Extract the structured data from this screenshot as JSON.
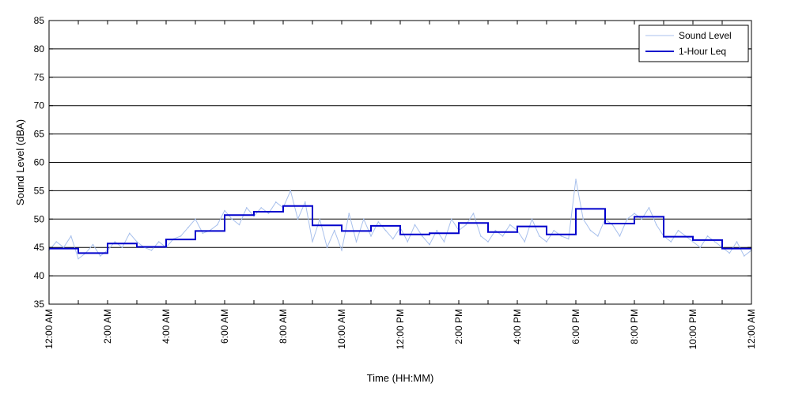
{
  "chart_data": {
    "type": "line",
    "title": "",
    "xlabel": "Time (HH:MM)",
    "ylabel": "Sound Level (dBA)",
    "ylim": [
      35,
      85
    ],
    "yticks": [
      35,
      40,
      45,
      50,
      55,
      60,
      65,
      70,
      75,
      80,
      85
    ],
    "xlim_hours": [
      0,
      24
    ],
    "xticks": [
      {
        "hour": 0,
        "label": "12:00 AM"
      },
      {
        "hour": 2,
        "label": "2:00 AM"
      },
      {
        "hour": 4,
        "label": "4:00 AM"
      },
      {
        "hour": 6,
        "label": "6:00 AM"
      },
      {
        "hour": 8,
        "label": "8:00 AM"
      },
      {
        "hour": 10,
        "label": "10:00 AM"
      },
      {
        "hour": 12,
        "label": "12:00 PM"
      },
      {
        "hour": 14,
        "label": "2:00 PM"
      },
      {
        "hour": 16,
        "label": "4:00 PM"
      },
      {
        "hour": 18,
        "label": "6:00 PM"
      },
      {
        "hour": 20,
        "label": "8:00 PM"
      },
      {
        "hour": 22,
        "label": "10:00 PM"
      },
      {
        "hour": 24,
        "label": "12:00 AM"
      }
    ],
    "minor_xticks_hours": [
      1,
      3,
      5,
      7,
      9,
      11,
      13,
      15,
      17,
      19,
      21,
      23
    ],
    "grid": "horizontal",
    "legend_position": "top-right",
    "series": [
      {
        "name": "Sound Level",
        "color": "#a8c0ec",
        "x": [
          0.0,
          0.25,
          0.5,
          0.75,
          1.0,
          1.25,
          1.5,
          1.75,
          2.0,
          2.25,
          2.5,
          2.75,
          3.0,
          3.25,
          3.5,
          3.75,
          4.0,
          4.25,
          4.5,
          4.75,
          5.0,
          5.25,
          5.5,
          5.75,
          6.0,
          6.25,
          6.5,
          6.75,
          7.0,
          7.25,
          7.5,
          7.75,
          8.0,
          8.25,
          8.5,
          8.75,
          9.0,
          9.25,
          9.5,
          9.75,
          10.0,
          10.25,
          10.5,
          10.75,
          11.0,
          11.25,
          11.5,
          11.75,
          12.0,
          12.25,
          12.5,
          12.75,
          13.0,
          13.25,
          13.5,
          13.75,
          14.0,
          14.25,
          14.5,
          14.75,
          15.0,
          15.25,
          15.5,
          15.75,
          16.0,
          16.25,
          16.5,
          16.75,
          17.0,
          17.25,
          17.5,
          17.75,
          18.0,
          18.25,
          18.5,
          18.75,
          19.0,
          19.25,
          19.5,
          19.75,
          20.0,
          20.25,
          20.5,
          20.75,
          21.0,
          21.25,
          21.5,
          21.75,
          22.0,
          22.25,
          22.5,
          22.75,
          23.0,
          23.25,
          23.5,
          23.75,
          24.0
        ],
        "values": [
          44.5,
          46.0,
          45.0,
          47.0,
          43.0,
          44.0,
          45.5,
          43.5,
          44.5,
          46.0,
          45.0,
          47.5,
          46.0,
          45.0,
          44.5,
          46.0,
          45.0,
          46.5,
          47.0,
          48.5,
          50.0,
          47.5,
          48.0,
          49.0,
          51.5,
          50.0,
          49.0,
          52.0,
          50.5,
          52.0,
          51.0,
          53.0,
          52.0,
          55.0,
          50.0,
          53.0,
          46.0,
          50.0,
          45.0,
          48.0,
          44.5,
          51.0,
          46.0,
          50.0,
          47.0,
          49.5,
          48.0,
          46.5,
          48.5,
          46.0,
          49.0,
          47.0,
          45.5,
          48.0,
          46.0,
          50.0,
          48.0,
          49.0,
          51.0,
          47.0,
          46.0,
          48.0,
          47.0,
          49.0,
          48.0,
          46.0,
          50.0,
          47.0,
          46.0,
          48.0,
          47.0,
          46.5,
          57.0,
          50.0,
          48.0,
          47.0,
          50.0,
          49.0,
          47.0,
          50.0,
          51.0,
          50.0,
          52.0,
          49.0,
          47.0,
          46.0,
          48.0,
          47.0,
          46.0,
          45.0,
          47.0,
          46.0,
          45.0,
          44.0,
          46.0,
          43.5,
          44.5
        ]
      },
      {
        "name": "1-Hour Leq",
        "color": "#0000cc",
        "type": "step",
        "hours": [
          0,
          1,
          2,
          3,
          4,
          5,
          6,
          7,
          8,
          9,
          10,
          11,
          12,
          13,
          14,
          15,
          16,
          17,
          18,
          19,
          20,
          21,
          22,
          23
        ],
        "values": [
          44.8,
          44.0,
          45.7,
          45.1,
          46.4,
          47.9,
          50.7,
          51.3,
          52.3,
          48.9,
          47.9,
          48.8,
          47.3,
          47.5,
          49.3,
          47.7,
          48.7,
          47.3,
          51.8,
          49.2,
          50.4,
          46.9,
          46.3,
          44.8
        ]
      }
    ]
  }
}
